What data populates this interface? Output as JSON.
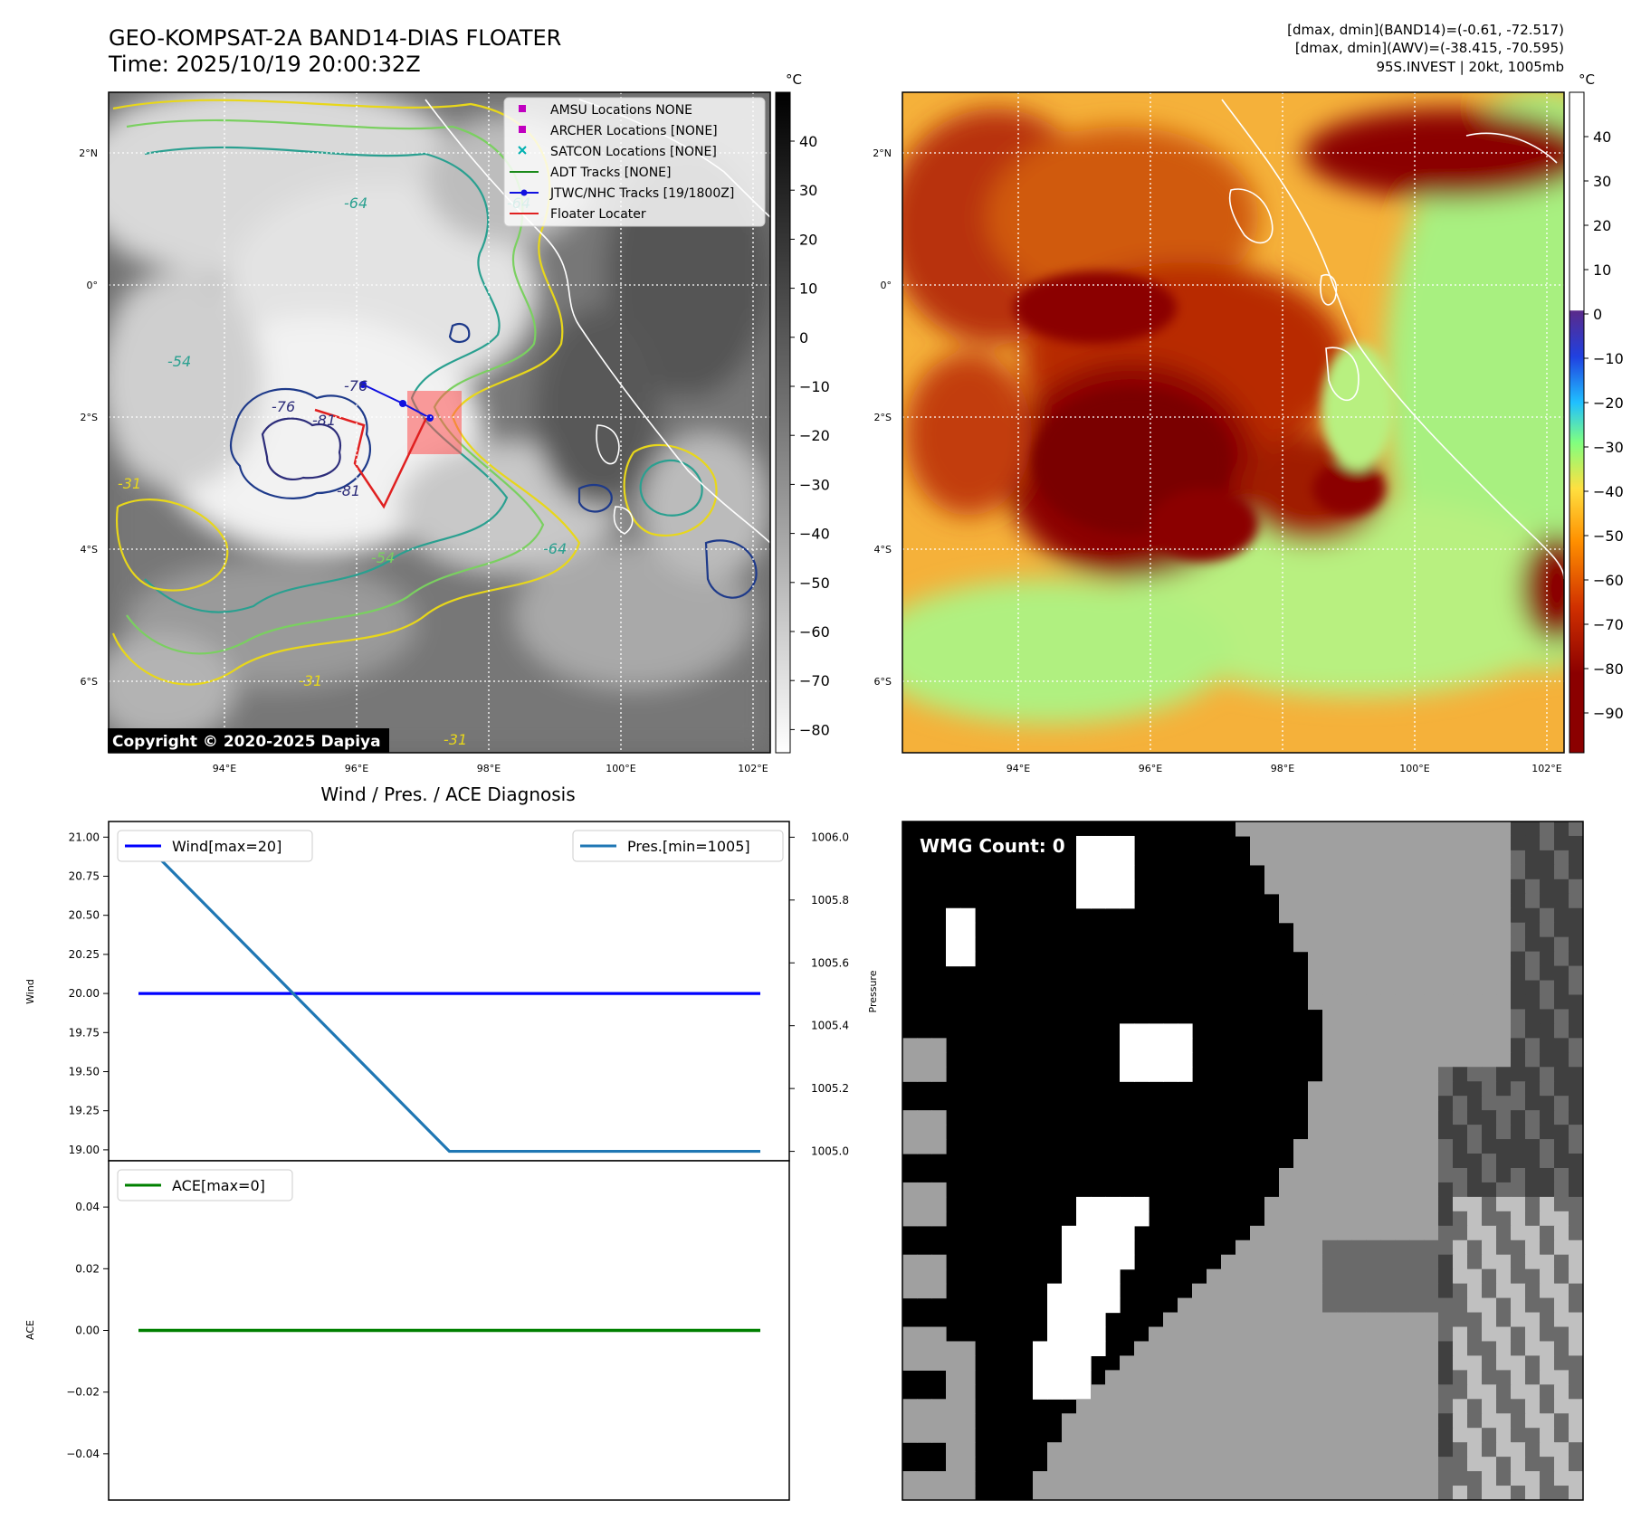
{
  "header": {
    "title_line1": "GEO-KOMPSAT-2A BAND14-DIAS FLOATER",
    "title_line2": "Time: 2025/10/19 20:00:32Z",
    "right_line1": "[dmax, dmin](BAND14)=(-0.61, -72.517)",
    "right_line2": "[dmax, dmin](AWV)=(-38.415, -70.595)",
    "right_line3": "95S.INVEST | 20kt, 1005mb"
  },
  "map_axes": {
    "lon_labels": [
      "94°E",
      "96°E",
      "98°E",
      "100°E",
      "102°E"
    ],
    "lat_labels": [
      "2°N",
      "0°",
      "2°S",
      "4°S",
      "6°S"
    ]
  },
  "ir_panel": {
    "legend": [
      {
        "label": "AMSU Locations NONE",
        "marker": "square",
        "color": "#c000c0"
      },
      {
        "label": "ARCHER Locations [NONE]",
        "marker": "square",
        "color": "#c000c0"
      },
      {
        "label": "SATCON Locations [NONE]",
        "marker": "x",
        "color": "#00b0b0"
      },
      {
        "label": "ADT Tracks [NONE]",
        "marker": "line",
        "color": "#1a8a1a"
      },
      {
        "label": "JTWC/NHC Tracks [19/1800Z]",
        "marker": "line-dot",
        "color": "#1010e0"
      },
      {
        "label": "Floater Locater",
        "marker": "line",
        "color": "#e02020"
      }
    ],
    "copyright": "Copyright © 2020-2025 Dapiya",
    "colorbar_unit": "°C",
    "colorbar_ticks": [
      "40",
      "30",
      "20",
      "10",
      "0",
      "−10",
      "−20",
      "−30",
      "−40",
      "−50",
      "−60",
      "−70",
      "−80"
    ],
    "contour_labels": [
      "-64",
      "-76",
      "-81",
      "-54",
      "-31",
      "-64",
      "-81",
      "-76",
      "-64",
      "-54",
      "-31",
      "-31"
    ]
  },
  "awv_panel": {
    "colorbar_unit": "°C",
    "colorbar_ticks": [
      "40",
      "30",
      "20",
      "10",
      "0",
      "−10",
      "−20",
      "−30",
      "−40",
      "−50",
      "−60",
      "−70",
      "−80",
      "−90"
    ]
  },
  "wmg_panel": {
    "count_label": "WMG Count: 0"
  },
  "chart_data": [
    {
      "type": "line",
      "title": "Wind / Pres. / ACE Diagnosis",
      "ylabel": "Wind",
      "y2label": "Pressure",
      "ylim": [
        18.93,
        21.1
      ],
      "y2lim": [
        1004.97,
        1006.05
      ],
      "yticks": [
        "21.00",
        "20.75",
        "20.50",
        "20.25",
        "20.00",
        "19.75",
        "19.50",
        "19.25",
        "19.00"
      ],
      "y2ticks": [
        "1006.0",
        "1005.8",
        "1005.6",
        "1005.4",
        "1005.2",
        "1005.0"
      ],
      "x": [
        0,
        1,
        2
      ],
      "series": [
        {
          "name": "Wind[max=20]",
          "axis": "left",
          "values": [
            20,
            20,
            20
          ],
          "color": "#0000ff"
        },
        {
          "name": "Pres.[min=1005]",
          "axis": "right",
          "values": [
            1006,
            1005,
            1005
          ],
          "color": "#1f77b4"
        }
      ]
    },
    {
      "type": "line",
      "ylabel": "ACE",
      "ylim": [
        -0.055,
        0.055
      ],
      "yticks": [
        "0.04",
        "0.02",
        "0.00",
        "−0.02",
        "−0.04"
      ],
      "x": [
        0,
        1,
        2
      ],
      "series": [
        {
          "name": "ACE[max=0]",
          "values": [
            0,
            0,
            0
          ],
          "color": "#008000"
        }
      ]
    }
  ]
}
